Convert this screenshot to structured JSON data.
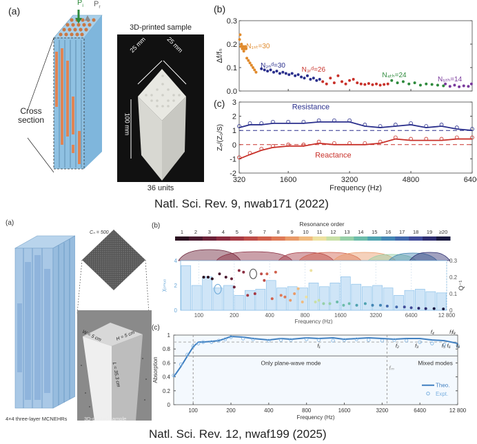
{
  "figure1": {
    "panel_a_label": "(a)",
    "panel_b_label": "(b)",
    "panel_c_label": "(c)",
    "arrow_labels": {
      "incident": "P",
      "incident_sub": "i",
      "reflected": "P",
      "reflected_sub": "r"
    },
    "cross_section_label_1": "Cross",
    "cross_section_label_2": "section",
    "photo_title": "3D-printed sample",
    "photo_caption": "36 units",
    "dim_width_1": "25 mm",
    "dim_width_2": "25 mm",
    "dim_height": "100 mm",
    "caption": "Natl. Sci. Rev. 9, nwab171 (2022)"
  },
  "figure2": {
    "panel_a_label": "(a)",
    "panel_b_label": "(b)",
    "panel_c_label": "(c)",
    "cn_label": "Cₙ = 500",
    "dim_w": "W = 5 cm",
    "dim_h": "H = 5 cm",
    "dim_l": "L = 35.3 cm",
    "model_caption": "4×4 three-layer MCNEHRs",
    "photo_caption": "3D-printed sample",
    "caption": "Natl. Sci. Rev. 12, nwaf199 (2025)"
  },
  "chart_data": [
    {
      "id": "fig1b",
      "type": "scatter",
      "title": "",
      "xlabel": "",
      "ylabel": "Δf/fₙ",
      "xlim": [
        320,
        6400
      ],
      "ylim": [
        0,
        0.3
      ],
      "yticks": [
        0.0,
        0.1,
        0.2,
        0.3
      ],
      "ytick_labels": [
        "0.0",
        "0.1",
        "0.2",
        "0.3"
      ],
      "grid": false,
      "series": [
        {
          "name": "N1st=30",
          "label": "N₁ₛₜ=30",
          "color": "#e08a2c",
          "x": [
            330,
            345,
            360,
            380,
            400,
            420,
            440,
            460,
            480,
            500,
            520,
            560,
            600,
            640,
            680,
            720,
            760
          ],
          "y": [
            0.22,
            0.24,
            0.19,
            0.2,
            0.18,
            0.19,
            0.17,
            0.18,
            0.19,
            0.18,
            0.14,
            0.13,
            0.12,
            0.11,
            0.1,
            0.09,
            0.08
          ]
        },
        {
          "name": "N2nd=30",
          "label": "N₂ₙᵈ=30",
          "color": "#2a2f8c",
          "x": [
            900,
            980,
            1060,
            1140,
            1220,
            1300,
            1380,
            1460,
            1540,
            1620,
            1700,
            1780,
            1860,
            1940,
            2020,
            2100,
            2180,
            2260,
            2340,
            2420
          ],
          "y": [
            0.095,
            0.09,
            0.085,
            0.09,
            0.08,
            0.085,
            0.075,
            0.08,
            0.075,
            0.07,
            0.075,
            0.065,
            0.07,
            0.06,
            0.055,
            0.065,
            0.05,
            0.055,
            0.045,
            0.05
          ]
        },
        {
          "name": "N3rd=26",
          "label": "N₃ᵣᵈ=26",
          "color": "#c8312a",
          "x": [
            2500,
            2600,
            2700,
            2800,
            2900,
            3000,
            3100,
            3200,
            3300,
            3400,
            3500,
            3600,
            3700,
            3800,
            3900,
            4000,
            4100,
            4200
          ],
          "y": [
            0.04,
            0.03,
            0.055,
            0.035,
            0.065,
            0.04,
            0.03,
            0.045,
            0.05,
            0.035,
            0.03,
            0.028,
            0.032,
            0.027,
            0.03,
            0.025,
            0.028,
            0.03
          ]
        },
        {
          "name": "N4th=24",
          "label": "N₄ₜₕ=24",
          "color": "#2e8a3c",
          "x": [
            4300,
            4450,
            4600,
            4750,
            4900,
            5050,
            5200,
            5350,
            5500,
            5650
          ],
          "y": [
            0.045,
            0.035,
            0.04,
            0.03,
            0.035,
            0.025,
            0.03,
            0.028,
            0.025,
            0.022
          ]
        },
        {
          "name": "N5th=14",
          "label": "N₅ₜₕ=14",
          "color": "#7a3a9c",
          "x": [
            5700,
            5820,
            5940,
            6060,
            6180,
            6300,
            6380
          ],
          "y": [
            0.03,
            0.02,
            0.025,
            0.018,
            0.022,
            0.02,
            0.03
          ]
        }
      ]
    },
    {
      "id": "fig1c",
      "type": "line",
      "xlabel": "Frequency (Hz)",
      "ylabel": "Zₑ/(Z₀/S)",
      "xlim": [
        320,
        6400
      ],
      "ylim": [
        -2,
        3
      ],
      "xticks": [
        320,
        1600,
        3200,
        4800,
        6400
      ],
      "xtick_labels": [
        "320",
        "1600",
        "3200",
        "4800",
        "6400"
      ],
      "yticks": [
        -2,
        -1,
        0,
        1,
        2,
        3
      ],
      "ytick_labels": [
        "-2",
        "-1",
        "0",
        "1",
        "2",
        "3"
      ],
      "reference_lines": [
        {
          "y": 1,
          "color": "#2a2f8c"
        },
        {
          "y": 0,
          "color": "#c8312a"
        }
      ],
      "series": [
        {
          "name": "Resistance",
          "color": "#2a2f8c",
          "x": [
            320,
            600,
            900,
            1200,
            1600,
            2000,
            2400,
            2800,
            3200,
            3600,
            4000,
            4400,
            4800,
            5200,
            5600,
            6000,
            6400
          ],
          "y": [
            1.2,
            1.4,
            1.4,
            1.5,
            1.5,
            1.5,
            1.6,
            1.6,
            1.6,
            1.3,
            1.2,
            1.3,
            1.4,
            1.2,
            1.3,
            1.1,
            1.0
          ]
        },
        {
          "name": "Reactance",
          "color": "#c8312a",
          "x": [
            320,
            600,
            900,
            1200,
            1600,
            2000,
            2400,
            2800,
            3200,
            3600,
            4000,
            4400,
            4800,
            5200,
            5600,
            6000,
            6400
          ],
          "y": [
            -1.0,
            -0.7,
            -0.4,
            -0.2,
            -0.1,
            -0.1,
            0.1,
            0.0,
            0.0,
            0.0,
            0.1,
            0.4,
            0.3,
            0.3,
            0.3,
            0.4,
            0.4
          ]
        }
      ],
      "annotations": [
        "Resistance",
        "Reactance"
      ]
    },
    {
      "id": "fig2b",
      "type": "bar",
      "xlabel": "Frequency (Hz)",
      "ylabel": "χₒₘᵤₒ",
      "ylabel_right": "Q⁻¹",
      "xscale": "log2",
      "xlim": [
        70,
        12800
      ],
      "ylim": [
        0,
        4
      ],
      "ylim_right": [
        0,
        0.3
      ],
      "xticks": [
        100,
        200,
        400,
        800,
        1600,
        3200,
        6400,
        12800
      ],
      "xtick_labels": [
        "100",
        "200",
        "400",
        "800",
        "1600",
        "3200",
        "6400",
        "12 800"
      ],
      "yticks": [
        0,
        2,
        4
      ],
      "yticks_right": [
        0,
        0.1,
        0.2,
        0.3
      ],
      "colorbar": {
        "title": "Resonance order",
        "labels": [
          "1",
          "2",
          "3",
          "4",
          "5",
          "6",
          "7",
          "8",
          "9",
          "10",
          "11",
          "12",
          "13",
          "14",
          "15",
          "16",
          "17",
          "18",
          "19",
          "≥20"
        ]
      },
      "bars": {
        "x_centers": [
          115,
          140,
          175,
          220,
          260,
          310,
          375,
          450,
          540,
          650,
          780,
          940,
          1130,
          1360,
          1640,
          1970,
          2370,
          2850,
          3430,
          4130,
          4970,
          5990,
          7210,
          8680,
          10450
        ],
        "values": [
          3.6,
          2.0,
          2.7,
          1.8,
          2.0,
          1.2,
          1.6,
          1.7,
          2.4,
          1.8,
          1.9,
          1.8,
          2.2,
          1.9,
          2.2,
          2.7,
          2.1,
          1.9,
          2.0,
          1.8,
          1.2,
          1.6,
          1.7,
          1.5,
          1.4
        ]
      },
      "scatter": {
        "name": "Q⁻¹",
        "x": [
          110,
          120,
          130,
          150,
          170,
          190,
          200,
          220,
          240,
          260,
          300,
          340,
          360,
          380,
          420,
          450,
          500,
          540,
          600,
          650,
          700,
          760,
          820,
          900,
          980,
          1050,
          1150,
          1300,
          1500,
          1700,
          1900,
          2200,
          2600,
          3000,
          3500,
          4000,
          4800,
          5600,
          6400,
          7400,
          8500,
          10000,
          12000
        ],
        "y": [
          0.2,
          0.2,
          0.19,
          0.22,
          0.2,
          0.19,
          0.14,
          0.24,
          0.23,
          0.09,
          0.1,
          0.22,
          0.18,
          0.22,
          0.07,
          0.23,
          0.09,
          0.08,
          0.06,
          0.1,
          0.13,
          0.05,
          0.08,
          0.24,
          0.05,
          0.06,
          0.04,
          0.04,
          0.05,
          0.03,
          0.04,
          0.03,
          0.04,
          0.03,
          0.03,
          0.025,
          0.02,
          0.02,
          0.015,
          0.012,
          0.01,
          0.01,
          0.008
        ]
      }
    },
    {
      "id": "fig2c",
      "type": "line",
      "xlabel": "Frequency (Hz)",
      "ylabel": "Absorption",
      "xscale": "log2",
      "xlim": [
        70,
        12800
      ],
      "ylim": [
        0,
        1
      ],
      "xticks": [
        100,
        200,
        400,
        800,
        1600,
        3200,
        6400,
        12800
      ],
      "xtick_labels": [
        "100",
        "200",
        "400",
        "800",
        "1600",
        "3200",
        "6400",
        "12 800"
      ],
      "yticks": [
        0,
        0.2,
        0.4,
        0.6,
        0.8,
        1
      ],
      "ytick_labels": [
        "0",
        "0.2",
        "0.4",
        "0.6",
        "0.8",
        "1"
      ],
      "reference_lines": [
        {
          "y": 0.9,
          "style": "dashed"
        },
        {
          "y": 0.7,
          "style": "solid"
        }
      ],
      "vlines": [
        {
          "x": 100,
          "style": "dashed"
        },
        {
          "x": 3500,
          "style": "dashed",
          "label": "fₘ"
        }
      ],
      "regions": [
        "Only plane-wave mode",
        "Mixed modes"
      ],
      "markers": [
        "f₁",
        "f₂",
        "f₃",
        "f₄",
        "f₅",
        "f₆",
        "f₇",
        "f₈",
        "f₉"
      ],
      "marker_x": [
        1000,
        4200,
        6000,
        8000,
        9800,
        10800,
        11300,
        11800,
        12800
      ],
      "legend": {
        "entries": [
          "Theo.",
          "Expt."
        ],
        "position": "bottom-right"
      },
      "series": [
        {
          "name": "Theo.",
          "color": "#3f7fc0",
          "x": [
            70,
            80,
            90,
            100,
            110,
            120,
            140,
            160,
            180,
            200,
            250,
            300,
            400,
            500,
            600,
            800,
            1000,
            1300,
            1600,
            2000,
            2500,
            3200,
            4000,
            5000,
            6400,
            8000,
            10000,
            12800
          ],
          "y": [
            0.4,
            0.55,
            0.7,
            0.83,
            0.9,
            0.9,
            0.91,
            0.92,
            0.95,
            0.98,
            0.97,
            0.95,
            0.93,
            0.95,
            0.94,
            0.96,
            0.95,
            0.96,
            0.94,
            0.95,
            0.96,
            0.95,
            0.94,
            0.95,
            0.95,
            0.93,
            0.92,
            0.88
          ]
        },
        {
          "name": "Expt.",
          "color": "#7ab0e0",
          "x": [
            70,
            80,
            90,
            100,
            110,
            120,
            140,
            160,
            180,
            200,
            250,
            300,
            400,
            500,
            600,
            800,
            1000,
            1300,
            1600,
            2000,
            2500,
            3200,
            4000,
            5000,
            6400,
            8000,
            10000,
            12800
          ],
          "y": [
            0.42,
            0.58,
            0.72,
            0.84,
            0.88,
            0.9,
            0.9,
            0.92,
            0.94,
            0.97,
            0.95,
            0.94,
            0.92,
            0.93,
            0.93,
            0.94,
            0.93,
            0.92,
            0.93,
            0.94,
            0.93,
            0.92,
            0.93,
            0.92,
            0.9,
            0.88,
            0.86,
            0.85
          ]
        }
      ]
    }
  ]
}
